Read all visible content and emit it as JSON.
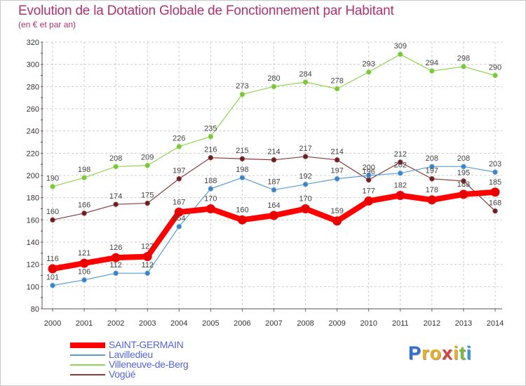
{
  "title": "Evolution de la Dotation Globale de Fonctionnement par Habitant",
  "subtitle": "(en € et par an)",
  "logo": {
    "letters": [
      "P",
      "r",
      "o",
      "x",
      "i",
      "t",
      "i"
    ],
    "colors": [
      "#2f6fd3",
      "#e8b020",
      "#e8b020",
      "#d84040",
      "#e8b020",
      "#7aba3a",
      "#2f9ad3"
    ]
  },
  "chart_data": {
    "type": "line",
    "x": [
      2000,
      2001,
      2002,
      2003,
      2004,
      2005,
      2006,
      2007,
      2008,
      2009,
      2010,
      2011,
      2012,
      2013,
      2014
    ],
    "ylim": [
      80,
      320
    ],
    "yticks": [
      80,
      100,
      120,
      140,
      160,
      180,
      200,
      220,
      240,
      260,
      280,
      300,
      320
    ],
    "grid": true,
    "legend_position": "bottom-left",
    "series": [
      {
        "name": "Villeneuve-de-Berg",
        "color": "#8fd650",
        "marker": "#79c53c",
        "width": 1.2,
        "r": 3.2,
        "values": [
          190,
          198,
          208,
          209,
          226,
          235,
          273,
          280,
          284,
          278,
          293,
          309,
          294,
          298,
          290
        ]
      },
      {
        "name": "Vogüé",
        "color": "#8b3a3a",
        "marker": "#6b2020",
        "width": 1.2,
        "r": 3.2,
        "values": [
          160,
          166,
          174,
          175,
          197,
          216,
          215,
          214,
          217,
          214,
          196,
          212,
          197,
          195,
          168
        ]
      },
      {
        "name": "Lavilledieu",
        "color": "#5b9ed6",
        "marker": "#3b82c4",
        "width": 1.2,
        "r": 3.2,
        "values": [
          101,
          106,
          112,
          112,
          154,
          188,
          198,
          187,
          192,
          197,
          200,
          202,
          208,
          208,
          203
        ]
      },
      {
        "name": "SAINT-GERMAIN",
        "color": "#ff0000",
        "marker": "#e60000",
        "width": 8,
        "r": 6,
        "values": [
          116,
          121,
          126,
          127,
          167,
          170,
          160,
          164,
          170,
          159,
          177,
          182,
          178,
          183,
          185
        ]
      }
    ],
    "legend_order": [
      "SAINT-GERMAIN",
      "Lavilledieu",
      "Villeneuve-de-Berg",
      "Vogüé"
    ]
  }
}
